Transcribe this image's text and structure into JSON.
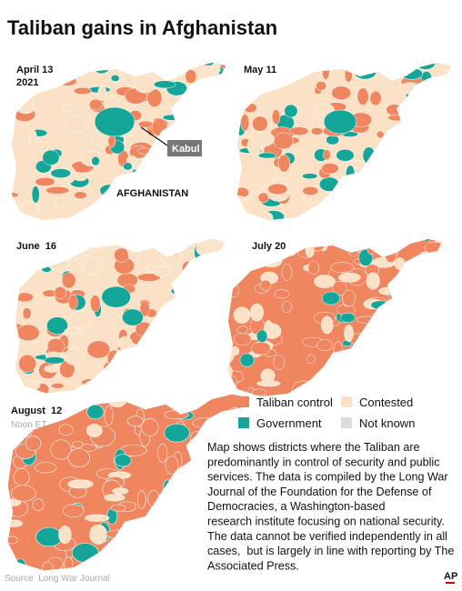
{
  "title": "Taliban gains in Afghanistan",
  "panels": [
    {
      "label": "April 13",
      "sublabel": "2021"
    },
    {
      "label": "May 11"
    },
    {
      "label": "June  16"
    },
    {
      "label": "July 20"
    },
    {
      "label": "August  12",
      "sublabel": "Noon ET"
    }
  ],
  "annotations": {
    "kabul": "Kabul",
    "country": "AFGHANISTAN"
  },
  "legend": [
    "Taliban control",
    "Contested",
    "Government",
    "Not known"
  ],
  "description": [
    "Map shows districts where the Taliban are",
    "predominantly in control of security and public",
    "services. The data is compiled by the Long War",
    "Journal of the Foundation for the Defense of",
    "Democracies, a Washington-based",
    "research institute focusing on national security.",
    "The data cannot be verified independently in all",
    "cases,  but is largely in line with reporting by The",
    "Associated Press."
  ],
  "source": "Source  Long War Journal",
  "logo": "AP"
}
